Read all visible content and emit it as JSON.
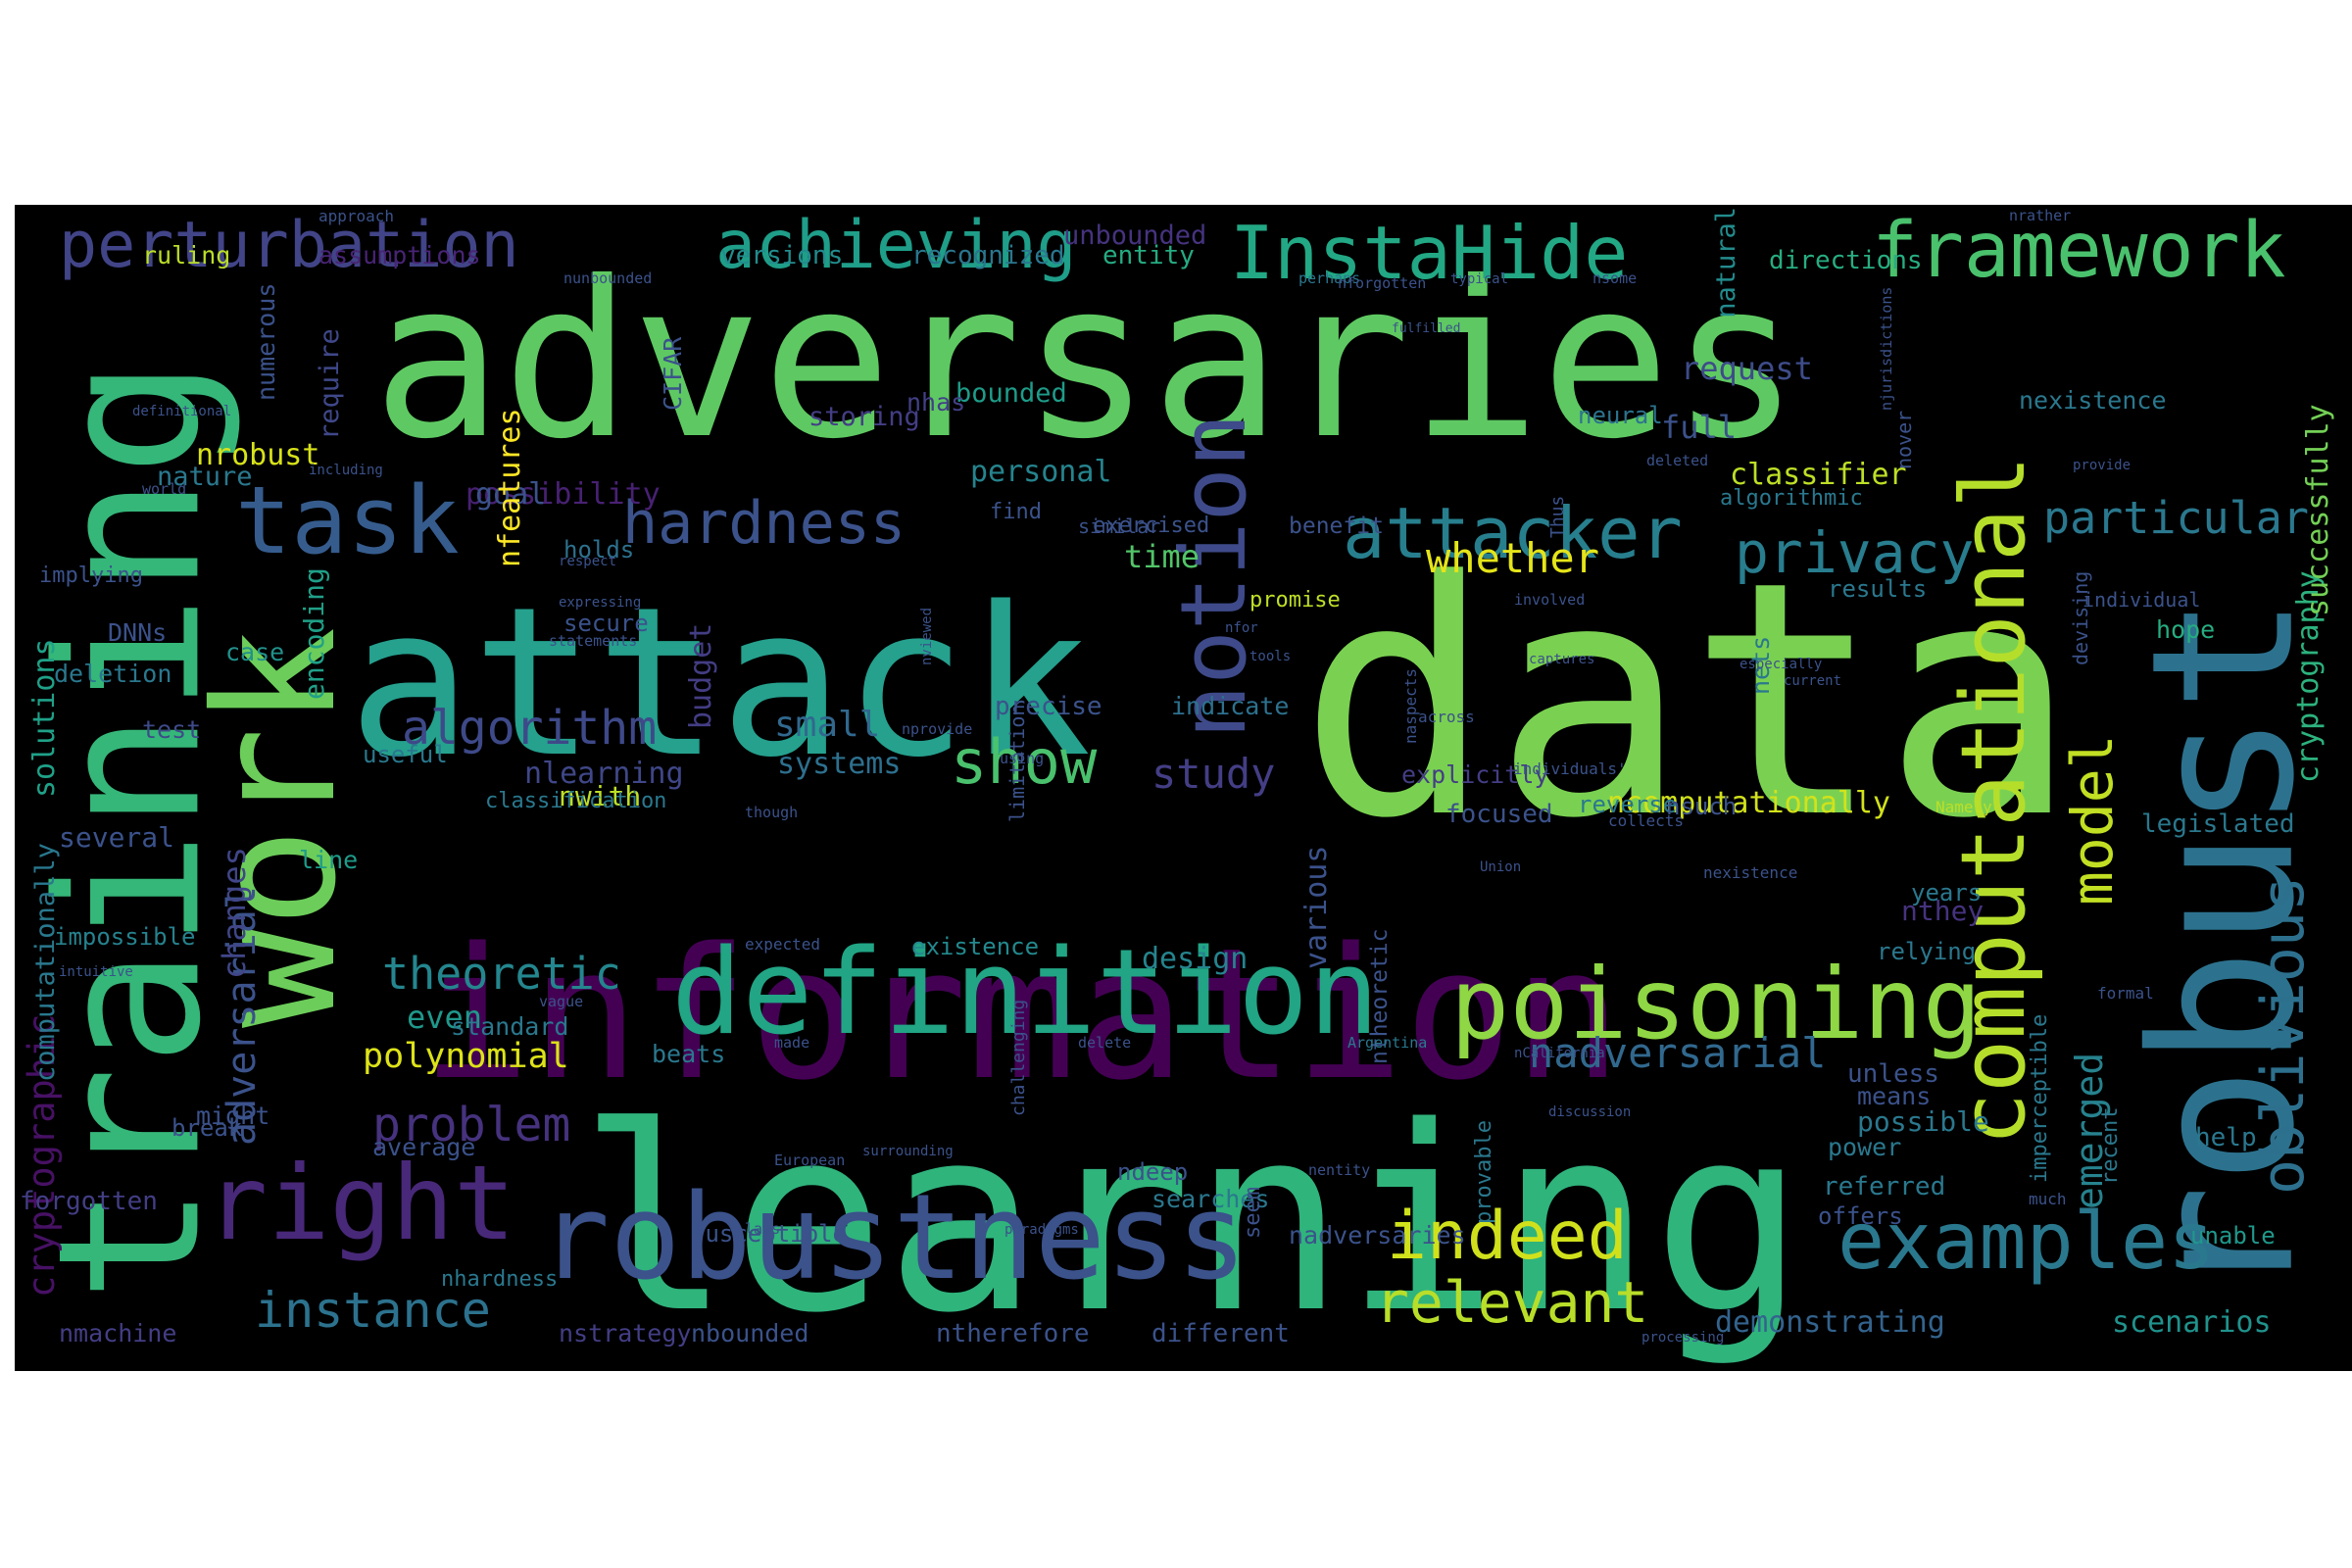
{
  "cloud": {
    "background": "#000000",
    "words": [
      {
        "text": "adversaries",
        "color": "#5ec962"
      },
      {
        "text": "data",
        "color": "#7ad151"
      },
      {
        "text": "learning",
        "color": "#2fb47c"
      },
      {
        "text": "information",
        "color": "#440154"
      },
      {
        "text": "attack",
        "color": "#25a18e"
      },
      {
        "text": "training",
        "color": "#35b779"
      },
      {
        "text": "work",
        "color": "#6ccd5a"
      },
      {
        "text": "robust",
        "color": "#2c728e"
      },
      {
        "text": "robustness",
        "color": "#3b528b"
      },
      {
        "text": "definition",
        "color": "#21a585"
      },
      {
        "text": "poisoning",
        "color": "#8fd744"
      },
      {
        "text": "computational",
        "color": "#b5de2b"
      },
      {
        "text": "examples",
        "color": "#2a788e"
      },
      {
        "text": "right",
        "color": "#482878"
      },
      {
        "text": "notion",
        "color": "#3e4a89"
      },
      {
        "text": "framework",
        "color": "#4ac16d"
      },
      {
        "text": "InstaHide",
        "color": "#22a884"
      },
      {
        "text": "achieving",
        "color": "#1f9e89"
      },
      {
        "text": "perturbation",
        "color": "#414487"
      },
      {
        "text": "task",
        "color": "#365c8d"
      },
      {
        "text": "attacker",
        "color": "#277f8e"
      },
      {
        "text": "hardness",
        "color": "#3b528b"
      },
      {
        "text": "indeed",
        "color": "#d0e11c"
      },
      {
        "text": "relevant",
        "color": "#b8de29"
      },
      {
        "text": "oblivious",
        "color": "#2d708e"
      },
      {
        "text": "privacy",
        "color": "#287d8e"
      },
      {
        "text": "model",
        "color": "#c2df23"
      },
      {
        "text": "particular",
        "color": "#2a788e"
      },
      {
        "text": "show",
        "color": "#4ac16d"
      },
      {
        "text": "algorithm",
        "color": "#3e4989"
      },
      {
        "text": "instance",
        "color": "#2c728e"
      },
      {
        "text": "problem",
        "color": "#46327e"
      },
      {
        "text": "theoretic",
        "color": "#24868e"
      },
      {
        "text": "nadversarial",
        "color": "#31688e"
      },
      {
        "text": "whether",
        "color": "#e5e419"
      },
      {
        "text": "emerged",
        "color": "#26828e"
      },
      {
        "text": "study",
        "color": "#433e85"
      },
      {
        "text": "adversarial",
        "color": "#3b528b"
      },
      {
        "text": "cryptographic",
        "color": "#471164"
      },
      {
        "text": "computationally",
        "color": "#29788e"
      },
      {
        "text": "solutions",
        "color": "#1fa188"
      },
      {
        "text": "cryptography",
        "color": "#2db27d"
      },
      {
        "text": "successfully",
        "color": "#73d055"
      },
      {
        "text": "classifier",
        "color": "#bddf26"
      },
      {
        "text": "ncomputationally",
        "color": "#d2e21b"
      },
      {
        "text": "polynomial",
        "color": "#dde318"
      },
      {
        "text": "small",
        "color": "#31688e"
      },
      {
        "text": "changes",
        "color": "#404688"
      },
      {
        "text": "demonstrating",
        "color": "#33638d"
      },
      {
        "text": "scenarios",
        "color": "#20928c"
      },
      {
        "text": "even",
        "color": "#1f988b"
      },
      {
        "text": "nrobust",
        "color": "#d8e219"
      },
      {
        "text": "nlearning",
        "color": "#3f4788"
      },
      {
        "text": "systems",
        "color": "#2d708e"
      },
      {
        "text": "request",
        "color": "#3e4c8a"
      },
      {
        "text": "full",
        "color": "#3b528b"
      },
      {
        "text": "personal",
        "color": "#25848e"
      },
      {
        "text": "time",
        "color": "#52c569"
      },
      {
        "text": "possibility",
        "color": "#482173"
      },
      {
        "text": "goal",
        "color": "#3b528b"
      },
      {
        "text": "versions",
        "color": "#228c8d"
      },
      {
        "text": "recognized",
        "color": "#2a768e"
      },
      {
        "text": "entity",
        "color": "#25ab82"
      },
      {
        "text": "unbounded",
        "color": "#46337f"
      },
      {
        "text": "nfeatures",
        "color": "#fde725"
      },
      {
        "text": "nature",
        "color": "#2a788e"
      },
      {
        "text": "storing",
        "color": "#433e85"
      },
      {
        "text": "bounded",
        "color": "#1e9c89"
      },
      {
        "text": "ruling",
        "color": "#bade28"
      },
      {
        "text": "assumptions",
        "color": "#482475"
      },
      {
        "text": "require",
        "color": "#3f4889"
      },
      {
        "text": "numerous",
        "color": "#3b528b"
      },
      {
        "text": "CIFAR",
        "color": "#3b528b"
      },
      {
        "text": "nhas",
        "color": "#424086"
      },
      {
        "text": "neural",
        "color": "#2c738e"
      },
      {
        "text": "natural",
        "color": "#228b8d"
      },
      {
        "text": "directions",
        "color": "#27ad81"
      },
      {
        "text": "nexistence",
        "color": "#2a788e"
      },
      {
        "text": "results",
        "color": "#2a788e"
      },
      {
        "text": "hope",
        "color": "#26ad81"
      },
      {
        "text": "budget",
        "color": "#433d84"
      },
      {
        "text": "precise",
        "color": "#3b528b"
      },
      {
        "text": "indicate",
        "color": "#2d718e"
      },
      {
        "text": "encoding",
        "color": "#1fa088"
      },
      {
        "text": "deletion",
        "color": "#2a788e"
      },
      {
        "text": "test",
        "color": "#3e4a89"
      },
      {
        "text": "DNNs",
        "color": "#3b528b"
      },
      {
        "text": "case",
        "color": "#21918c"
      },
      {
        "text": "secure",
        "color": "#3b528b"
      },
      {
        "text": "holds",
        "color": "#2d718e"
      },
      {
        "text": "useful",
        "color": "#2a788e"
      },
      {
        "text": "several",
        "color": "#3b528b"
      },
      {
        "text": "nwith",
        "color": "#bddf26"
      },
      {
        "text": "classification",
        "color": "#2a788e"
      },
      {
        "text": "line",
        "color": "#1e9b8a"
      },
      {
        "text": "impossible",
        "color": "#26828e"
      },
      {
        "text": "existence",
        "color": "#23898e"
      },
      {
        "text": "design",
        "color": "#25848e"
      },
      {
        "text": "various",
        "color": "#3b528b"
      },
      {
        "text": "explicitly",
        "color": "#433e85"
      },
      {
        "text": "focused",
        "color": "#3b528b"
      },
      {
        "text": "reverse",
        "color": "#2a788e"
      },
      {
        "text": "nsuch",
        "color": "#3b528b"
      },
      {
        "text": "nthey",
        "color": "#46337f"
      },
      {
        "text": "relying",
        "color": "#2a788e"
      },
      {
        "text": "unless",
        "color": "#3b528b"
      },
      {
        "text": "means",
        "color": "#3b528b"
      },
      {
        "text": "possible",
        "color": "#2a788e"
      },
      {
        "text": "power",
        "color": "#2a788e"
      },
      {
        "text": "referred",
        "color": "#2a788e"
      },
      {
        "text": "offers",
        "color": "#3b528b"
      },
      {
        "text": "legislated",
        "color": "#2a788e"
      },
      {
        "text": "years",
        "color": "#2a788e"
      },
      {
        "text": "help",
        "color": "#2a788e"
      },
      {
        "text": "unable",
        "color": "#1f988b"
      },
      {
        "text": "standard",
        "color": "#2a788e"
      },
      {
        "text": "beats",
        "color": "#2a788e"
      },
      {
        "text": "might",
        "color": "#3b528b"
      },
      {
        "text": "break",
        "color": "#3b528b"
      },
      {
        "text": "average",
        "color": "#3b528b"
      },
      {
        "text": "forgotten",
        "color": "#433e85"
      },
      {
        "text": "susceptible",
        "color": "#3b528b"
      },
      {
        "text": "nhardness",
        "color": "#2a788e"
      },
      {
        "text": "nmachine",
        "color": "#433e85"
      },
      {
        "text": "nstrategy",
        "color": "#433e85"
      },
      {
        "text": "nbounded",
        "color": "#3b528b"
      },
      {
        "text": "ntherefore",
        "color": "#3b528b"
      },
      {
        "text": "different",
        "color": "#3b528b"
      },
      {
        "text": "nadversaries",
        "color": "#3b528b"
      },
      {
        "text": "searches",
        "color": "#2a788e"
      },
      {
        "text": "ndeep",
        "color": "#3b528b"
      },
      {
        "text": "seem",
        "color": "#3b528b"
      },
      {
        "text": "provable",
        "color": "#2a788e"
      },
      {
        "text": "ntheoretic",
        "color": "#3b528b"
      },
      {
        "text": "promise",
        "color": "#bddf26"
      },
      {
        "text": "benefit",
        "color": "#3b528b"
      },
      {
        "text": "exercised",
        "color": "#3b528b"
      },
      {
        "text": "find",
        "color": "#3b528b"
      },
      {
        "text": "similar",
        "color": "#3b528b"
      },
      {
        "text": "algorithmic",
        "color": "#2a788e"
      },
      {
        "text": "nets",
        "color": "#2a788e"
      },
      {
        "text": "imperceptible",
        "color": "#2a788e"
      },
      {
        "text": "recent",
        "color": "#2a788e"
      },
      {
        "text": "individual",
        "color": "#3b528b"
      },
      {
        "text": "devising",
        "color": "#3b528b"
      },
      {
        "text": "nover",
        "color": "#3b528b"
      },
      {
        "text": "Thus",
        "color": "#3b528b"
      },
      {
        "text": "limitation",
        "color": "#3b528b"
      },
      {
        "text": "challenging",
        "color": "#3b528b"
      },
      {
        "text": "implying",
        "color": "#3b528b"
      },
      {
        "text": "approach",
        "color": "#3b528b"
      },
      {
        "text": "nunbounded",
        "color": "#3b528b"
      },
      {
        "text": "perhaps",
        "color": "#2a788e"
      },
      {
        "text": "nforgotten",
        "color": "#3b528b"
      },
      {
        "text": "typical",
        "color": "#3b528b"
      },
      {
        "text": "nsome",
        "color": "#3b528b"
      },
      {
        "text": "nrather",
        "color": "#3b528b"
      },
      {
        "text": "fulfilled",
        "color": "#3b528b"
      },
      {
        "text": "njurisdictions",
        "color": "#3b528b"
      },
      {
        "text": "definitional",
        "color": "#3b528b"
      },
      {
        "text": "world",
        "color": "#3b528b"
      },
      {
        "text": "including",
        "color": "#3b528b"
      },
      {
        "text": "deleted",
        "color": "#3b528b"
      },
      {
        "text": "provide",
        "color": "#3b528b"
      },
      {
        "text": "respect",
        "color": "#3b528b"
      },
      {
        "text": "expressing",
        "color": "#3b528b"
      },
      {
        "text": "statements",
        "color": "#3b528b"
      },
      {
        "text": "nviewed",
        "color": "#3b528b"
      },
      {
        "text": "involved",
        "color": "#3b528b"
      },
      {
        "text": "captures",
        "color": "#3b528b"
      },
      {
        "text": "tools",
        "color": "#3b528b"
      },
      {
        "text": "nfor",
        "color": "#3b528b"
      },
      {
        "text": "especially",
        "color": "#3b528b"
      },
      {
        "text": "current",
        "color": "#3b528b"
      },
      {
        "text": "naspects",
        "color": "#3b528b"
      },
      {
        "text": "nprovide",
        "color": "#3b528b"
      },
      {
        "text": "using",
        "color": "#3b528b"
      },
      {
        "text": "though",
        "color": "#3b528b"
      },
      {
        "text": "Namely",
        "color": "#bddf26"
      },
      {
        "text": "Union",
        "color": "#3b528b"
      },
      {
        "text": "expected",
        "color": "#3b528b"
      },
      {
        "text": "formal",
        "color": "#3b528b"
      },
      {
        "text": "intuitive",
        "color": "#3b528b"
      },
      {
        "text": "vague",
        "color": "#3b528b"
      },
      {
        "text": "made",
        "color": "#3b528b"
      },
      {
        "text": "delete",
        "color": "#3b528b"
      },
      {
        "text": "nCalifornia",
        "color": "#3b528b"
      },
      {
        "text": "Argentina",
        "color": "#2a788e"
      },
      {
        "text": "surrounding",
        "color": "#3b528b"
      },
      {
        "text": "discussion",
        "color": "#3b528b"
      },
      {
        "text": "European",
        "color": "#3b528b"
      },
      {
        "text": "nentity",
        "color": "#3b528b"
      },
      {
        "text": "paradigms",
        "color": "#3b528b"
      },
      {
        "text": "laws",
        "color": "#3b528b"
      },
      {
        "text": "processing",
        "color": "#3b528b"
      },
      {
        "text": "much",
        "color": "#3b528b"
      },
      {
        "text": "across",
        "color": "#3b528b"
      },
      {
        "text": "individuals'",
        "color": "#3b528b"
      },
      {
        "text": "collects",
        "color": "#3b528b"
      },
      {
        "text": "nexistence",
        "color": "#3b528b"
      }
    ]
  }
}
